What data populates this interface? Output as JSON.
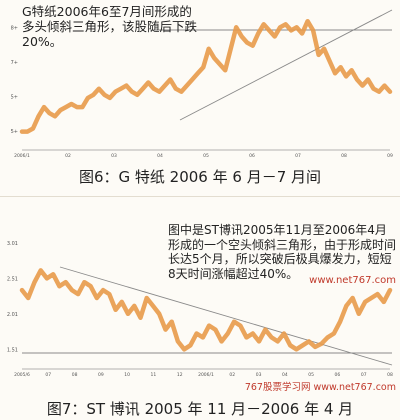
{
  "chart_data": [
    {
      "type": "line",
      "annotation": "G特纸2006年6至7月间形成的多头倾斜三角形，该股随后下跌20%。",
      "caption": "图6：G 特纸 2006 年 6 月－7 月间",
      "color": "#e89a4a",
      "yticks": [
        "8+",
        "7+",
        "5+",
        "5+"
      ],
      "xticks": [
        "2006/1",
        "02",
        "03",
        "04",
        "05",
        "06",
        "07",
        "08",
        "09"
      ],
      "ylim": [
        4.5,
        9
      ],
      "series": [
        {
          "values": [
            5.1,
            5.1,
            5.2,
            5.6,
            5.9,
            5.7,
            5.6,
            5.8,
            5.9,
            6.0,
            5.9,
            5.9,
            6.2,
            6.3,
            6.5,
            6.3,
            6.2,
            6.4,
            6.5,
            6.6,
            6.4,
            6.3,
            6.5,
            6.7,
            6.5,
            6.4,
            6.6,
            6.8,
            6.5,
            6.4,
            6.6,
            6.8,
            7.0,
            7.2,
            7.8,
            7.5,
            7.3,
            7.1,
            7.8,
            8.5,
            8.2,
            8.0,
            7.9,
            8.3,
            8.6,
            8.4,
            8.2,
            8.5,
            8.6,
            8.4,
            8.5,
            8.3,
            8.7,
            8.4,
            7.6,
            7.8,
            7.4,
            7.0,
            7.2,
            6.9,
            7.1,
            6.8,
            6.6,
            6.8,
            6.5,
            6.4,
            6.6,
            6.4
          ]
        }
      ]
    },
    {
      "type": "line",
      "annotation": "图中是ST博讯2005年11月至2006年4月形成的一个空头倾斜三角形，由于形成时间长达5个月，所以突破后极具爆发力，短短8天时间涨幅超过40%。",
      "caption": "图7：ST 博讯 2005 年 11 月－2006 年 4 月",
      "watermark": "767股票学习网 www.net767.com",
      "corner_text": "www.net767.com",
      "color": "#e89a4a",
      "yticks": [
        "3.01",
        "2.51",
        "2.01",
        "1.51"
      ],
      "xticks": [
        "2005/6",
        "07",
        "08",
        "09",
        "10",
        "11",
        "12",
        "2006/1",
        "02",
        "03",
        "04",
        "05",
        "06",
        "07",
        "08"
      ],
      "ylim": [
        1.3,
        3.1
      ],
      "series": [
        {
          "values": [
            2.3,
            2.2,
            2.4,
            2.55,
            2.45,
            2.5,
            2.35,
            2.4,
            2.3,
            2.25,
            2.4,
            2.35,
            2.2,
            2.3,
            2.25,
            2.05,
            2.15,
            2.0,
            2.1,
            1.95,
            2.2,
            2.1,
            2.0,
            1.8,
            1.9,
            1.65,
            1.55,
            1.6,
            1.75,
            1.7,
            1.85,
            1.8,
            1.65,
            1.75,
            1.9,
            1.85,
            1.7,
            1.75,
            1.65,
            1.8,
            1.7,
            1.65,
            1.75,
            1.6,
            1.55,
            1.6,
            1.65,
            1.58,
            1.62,
            1.7,
            1.75,
            1.9,
            2.1,
            2.2,
            2.0,
            2.15,
            2.2,
            2.25,
            2.15,
            2.3
          ]
        }
      ]
    }
  ]
}
